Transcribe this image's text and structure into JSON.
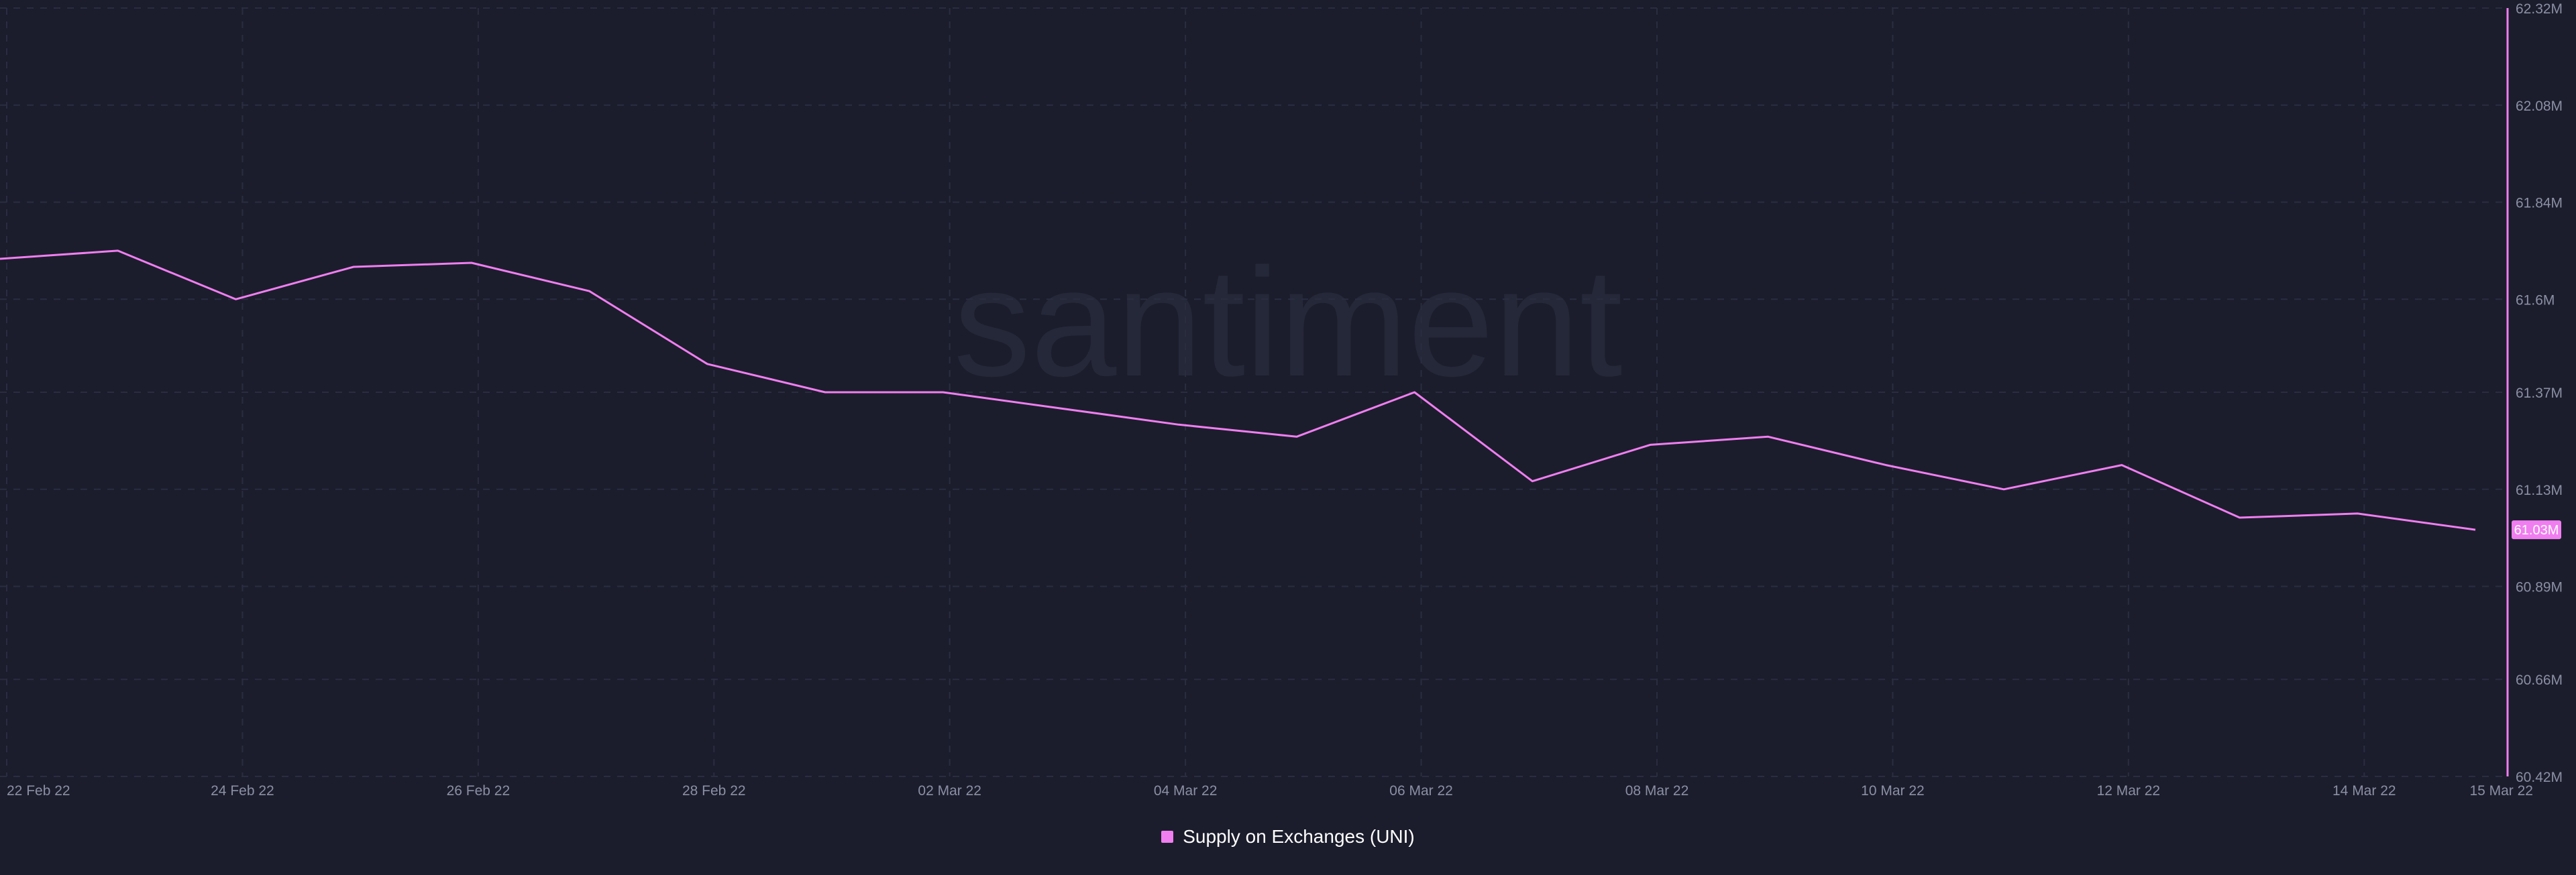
{
  "watermark": "santiment",
  "colors": {
    "background": "#1b1d2c",
    "series": "#f07ef0",
    "grid": "#2a2d40",
    "tick_text": "#8b8fa3",
    "watermark": "#252838",
    "badge_text": "#ffffff"
  },
  "chart_data": {
    "type": "line",
    "title": "",
    "xlabel": "",
    "ylabel": "",
    "x": [
      "22 Feb 22",
      "23 Feb 22",
      "24 Feb 22",
      "25 Feb 22",
      "26 Feb 22",
      "27 Feb 22",
      "28 Feb 22",
      "01 Mar 22",
      "02 Mar 22",
      "03 Mar 22",
      "04 Mar 22",
      "05 Mar 22",
      "06 Mar 22",
      "07 Mar 22",
      "08 Mar 22",
      "09 Mar 22",
      "10 Mar 22",
      "11 Mar 22",
      "12 Mar 22",
      "13 Mar 22",
      "14 Mar 22",
      "15 Mar 22"
    ],
    "series": [
      {
        "name": "Supply on Exchanges (UNI)",
        "color": "#f07ef0",
        "values": [
          61.7,
          61.72,
          61.6,
          61.68,
          61.69,
          61.62,
          61.44,
          61.37,
          61.37,
          61.33,
          61.29,
          61.26,
          61.37,
          61.15,
          61.24,
          61.26,
          61.19,
          61.13,
          61.19,
          61.06,
          61.07,
          61.03
        ]
      }
    ],
    "x_tick_labels": [
      "22 Feb 22",
      "24 Feb 22",
      "26 Feb 22",
      "28 Feb 22",
      "02 Mar 22",
      "04 Mar 22",
      "06 Mar 22",
      "08 Mar 22",
      "10 Mar 22",
      "12 Mar 22",
      "14 Mar 22",
      "15 Mar 22"
    ],
    "y_ticks": [
      {
        "value": 60.42,
        "label": "60.42M"
      },
      {
        "value": 60.66,
        "label": "60.66M"
      },
      {
        "value": 60.89,
        "label": "60.89M"
      },
      {
        "value": 61.13,
        "label": "61.13M"
      },
      {
        "value": 61.37,
        "label": "61.37M"
      },
      {
        "value": 61.6,
        "label": "61.6M"
      },
      {
        "value": 61.84,
        "label": "61.84M"
      },
      {
        "value": 62.08,
        "label": "62.08M"
      },
      {
        "value": 62.32,
        "label": "62.32M"
      }
    ],
    "ylim": [
      60.42,
      62.32
    ],
    "y_axis_side": "right",
    "last_value_badge": "61.03M",
    "grid": true,
    "legend_position": "bottom-center"
  }
}
